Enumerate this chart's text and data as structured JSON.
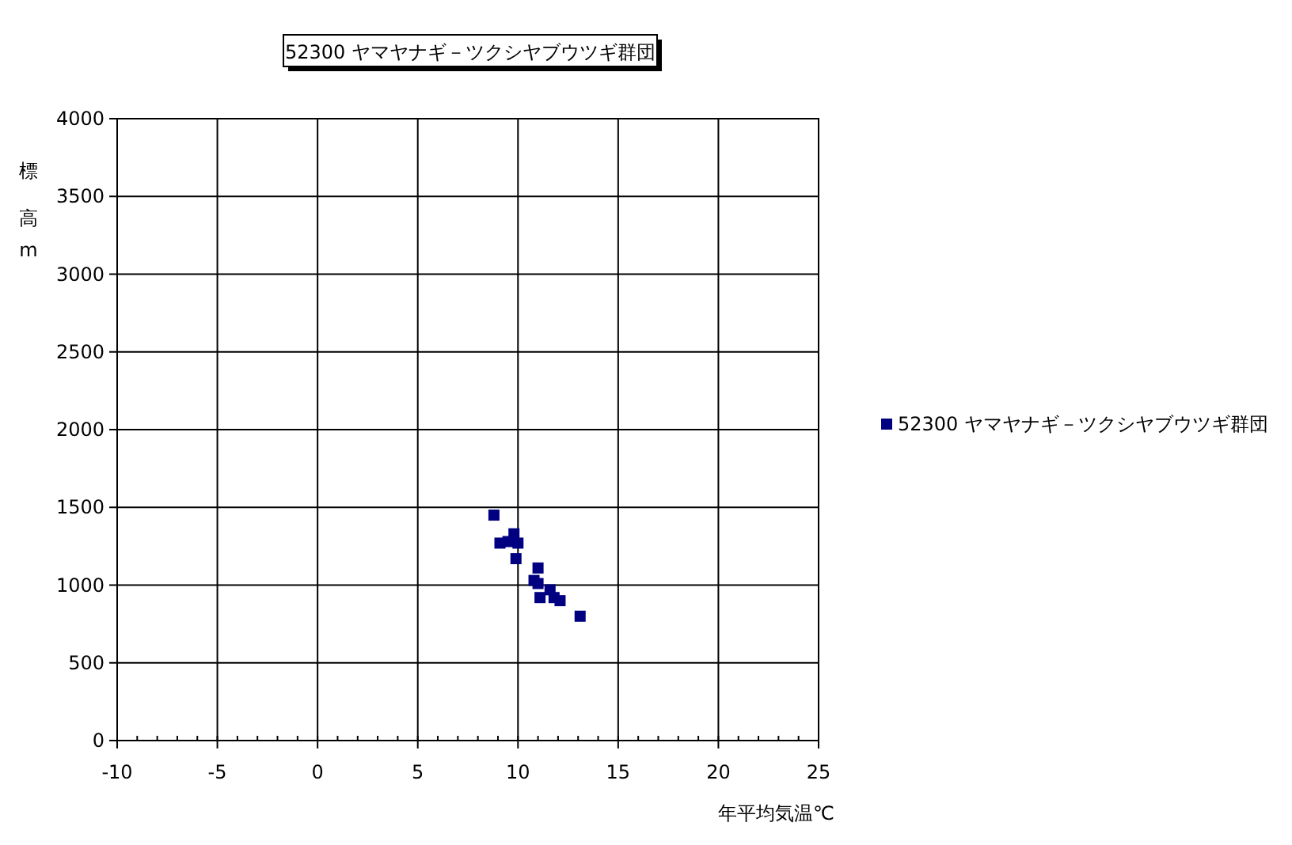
{
  "chart_data": {
    "type": "scatter",
    "title": "52300 ヤマヤナギ－ツクシヤブウツギ群団",
    "xlabel": "年平均気温℃",
    "ylabel": "標高m",
    "xlim": [
      -10,
      25
    ],
    "xticks": [
      -10,
      -5,
      0,
      5,
      10,
      15,
      20,
      25
    ],
    "ylim": [
      0,
      4000
    ],
    "yticks": [
      0,
      500,
      1000,
      1500,
      2000,
      2500,
      3000,
      3500,
      4000
    ],
    "grid": true,
    "legend": "right",
    "marker": "square",
    "series": [
      {
        "name": "52300 ヤマヤナギ－ツクシヤブウツギ群団",
        "color": "#000080",
        "x": [
          8.8,
          9.1,
          9.5,
          9.8,
          10.0,
          9.9,
          11.0,
          10.8,
          11.0,
          11.1,
          11.6,
          11.8,
          12.1,
          13.1
        ],
        "values": [
          1450,
          1270,
          1280,
          1330,
          1270,
          1170,
          1110,
          1030,
          1010,
          920,
          970,
          920,
          900,
          800
        ]
      }
    ]
  }
}
